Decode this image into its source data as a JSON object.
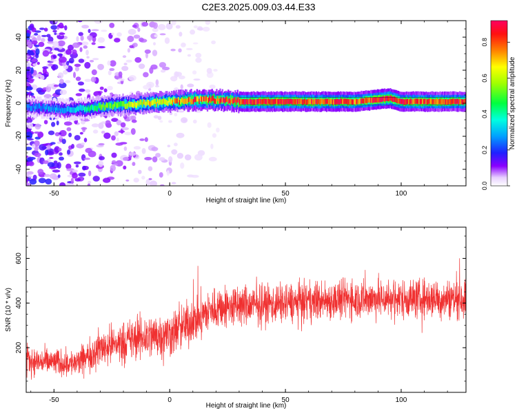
{
  "figure": {
    "title": "C2E3.2025.009.03.44.E33"
  },
  "chart_data": [
    {
      "type": "heatmap",
      "xlabel": "Height of straight line (km)",
      "ylabel": "Frequency (Hz)",
      "xlim": [
        -62,
        128
      ],
      "ylim": [
        -50,
        50
      ],
      "xticks": [
        "-50",
        "0",
        "50",
        "100"
      ],
      "xtick_values": [
        -50,
        0,
        50,
        100
      ],
      "yticks": [
        "-40",
        "-20",
        "0",
        "20",
        "40"
      ],
      "ytick_values": [
        -40,
        -20,
        0,
        20,
        40
      ],
      "colorbar": {
        "label": "Normalized spectral amplitude",
        "range": [
          0,
          0.92
        ],
        "ticks": [
          "0.0",
          "0.2",
          "0.4",
          "0.6",
          "0.8"
        ],
        "tick_values": [
          0,
          0.2,
          0.4,
          0.6,
          0.8
        ]
      },
      "ridge": {
        "description_points_x": [
          -62,
          -45,
          -35,
          -30,
          -20,
          -10,
          0,
          10,
          20,
          30,
          50,
          80,
          95,
          100,
          128
        ],
        "frequency_y": [
          -2,
          -4,
          -3,
          -2,
          -1,
          0,
          1,
          2,
          2,
          1,
          1,
          1,
          3,
          1,
          1
        ],
        "peak_amplitude": [
          0.25,
          0.3,
          0.4,
          0.5,
          0.55,
          0.65,
          0.7,
          0.8,
          0.8,
          0.85,
          0.85,
          0.8,
          0.9,
          0.85,
          0.8
        ]
      }
    },
    {
      "type": "line",
      "xlabel": "Height of straight line (km)",
      "ylabel": "SNR (10 * v/v)",
      "xlim": [
        -62,
        128
      ],
      "ylim": [
        0,
        740
      ],
      "xticks": [
        "-50",
        "0",
        "50",
        "100"
      ],
      "xtick_values": [
        -50,
        0,
        50,
        100
      ],
      "yticks": [
        "200",
        "400",
        "600"
      ],
      "ytick_values": [
        200,
        400,
        600
      ],
      "series": [
        {
          "color": "#f03030",
          "trend_x": [
            -62,
            -40,
            -30,
            -10,
            0,
            10,
            20,
            50,
            80,
            100,
            128
          ],
          "trend_mean": [
            140,
            130,
            200,
            250,
            260,
            320,
            380,
            400,
            420,
            420,
            420
          ],
          "trend_spread": [
            90,
            90,
            120,
            150,
            150,
            150,
            140,
            130,
            130,
            130,
            130
          ]
        }
      ]
    }
  ]
}
